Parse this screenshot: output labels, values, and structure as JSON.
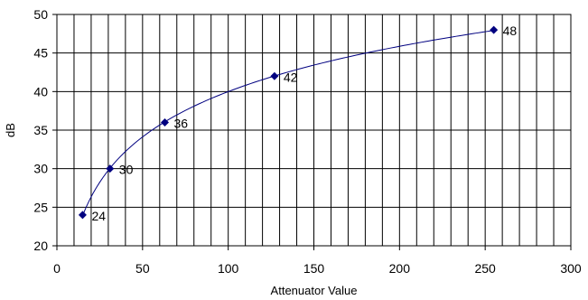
{
  "chart_data": {
    "type": "scatter",
    "title": "",
    "xlabel": "Attenuator Value",
    "ylabel": "dB",
    "xlim": [
      0,
      300
    ],
    "ylim": [
      20,
      50
    ],
    "x_ticks": [
      "0",
      "50",
      "100",
      "150",
      "200",
      "250",
      "300"
    ],
    "y_ticks": [
      "20",
      "25",
      "30",
      "35",
      "40",
      "45",
      "50"
    ],
    "x_minor_step": 10,
    "y_step": 5,
    "grid": true,
    "legend": "none",
    "trendline": "logarithmic",
    "series": [
      {
        "x": [
          15,
          31,
          63,
          127,
          255
        ],
        "y": [
          24,
          30,
          36,
          42,
          48
        ],
        "labels": [
          "24",
          "30",
          "36",
          "42",
          "48"
        ],
        "color": "#000080"
      }
    ]
  }
}
